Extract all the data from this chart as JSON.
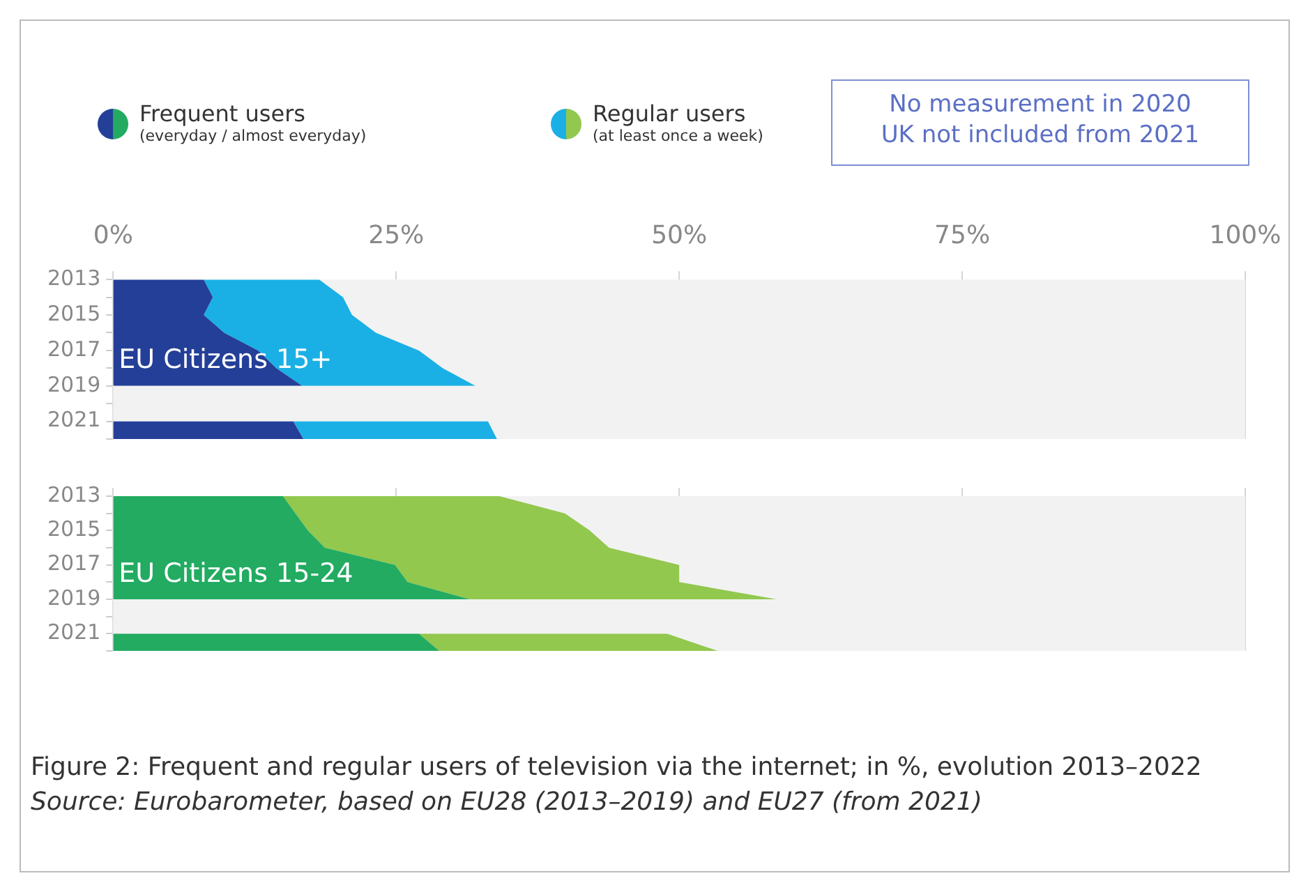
{
  "chart_data": [
    {
      "type": "area",
      "orientation": "horizontal",
      "stacked": true,
      "title": "EU Citizens 15+",
      "categories": [
        "2013",
        null,
        "2015",
        null,
        "2017",
        null,
        "2019",
        null,
        "2021",
        null
      ],
      "series": [
        {
          "name": "Frequent users\n(everyday / almost everyday)",
          "color": "#243f97",
          "values": [
            8,
            8.8,
            8,
            9.8,
            12.8,
            14.4,
            16.7,
            null,
            15.9,
            16.8
          ]
        },
        {
          "name": "Regular users\n(at least once a week)",
          "color": "#1bb0e5",
          "values": [
            10.2,
            11.5,
            13.1,
            13.4,
            14.2,
            14.7,
            15.3,
            null,
            17.2,
            17.1
          ]
        }
      ],
      "xlim": [
        0,
        100
      ],
      "xticks": [
        {
          "value": 0,
          "label": "0%"
        },
        {
          "value": 25,
          "label": "25%"
        },
        {
          "value": 50,
          "label": "50%"
        },
        {
          "value": 75,
          "label": "75%"
        },
        {
          "value": 100,
          "label": "100%"
        }
      ],
      "grid": "x",
      "legend": "top",
      "annotations": [
        "No measurement in 2020\nUK not included from 2021"
      ]
    },
    {
      "type": "area",
      "orientation": "horizontal",
      "stacked": true,
      "title": "EU Citizens 15-24",
      "categories": [
        "2013",
        null,
        "2015",
        null,
        "2017",
        null,
        "2019",
        null,
        "2021",
        null
      ],
      "series": [
        {
          "color": "#22ab61",
          "values": [
            15,
            16.1,
            17.2,
            18.7,
            24.9,
            26,
            31.5,
            null,
            27,
            28.8
          ]
        },
        {
          "color": "#92c84e",
          "values": [
            19.1,
            23.8,
            24.9,
            25.1,
            25.1,
            24,
            27.1,
            null,
            21.9,
            24.6
          ]
        }
      ],
      "xlim": [
        0,
        100
      ],
      "xticks": [
        0,
        25,
        50,
        75,
        100
      ],
      "tick_labels": "y",
      "grid": "x",
      "annotations": [
        "Figure 2: Frequent and regular users of television via the internet; in %, evolution 2013–2022",
        "Source: Eurobarometer, based on EU28 (2013–2019) and EU27 (from 2021)"
      ]
    }
  ]
}
